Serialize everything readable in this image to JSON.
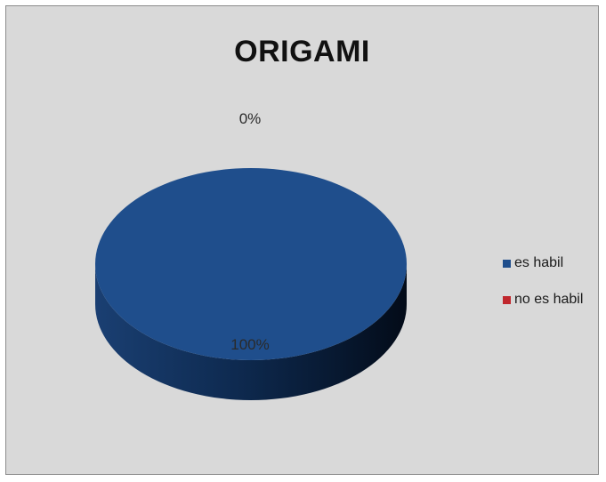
{
  "chart_data": {
    "type": "pie",
    "title": "ORIGAMI",
    "categories": [
      "es habil",
      "no es habil"
    ],
    "values": [
      100,
      0
    ],
    "data_labels": [
      "100%",
      "0%"
    ],
    "colors": [
      "#1f4e8c",
      "#c0272d"
    ],
    "legend": "right",
    "style": "3d"
  }
}
